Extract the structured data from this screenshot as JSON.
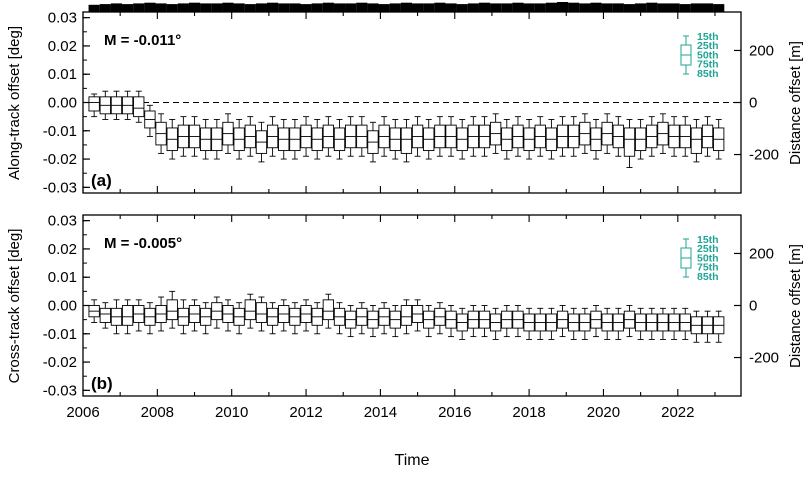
{
  "chart_data": [
    {
      "type": "box",
      "panel_label": "(a)",
      "annotation": "M = -0.011°",
      "ylabel": "Along-track offset [deg]",
      "y2label": "Distance offset [m]",
      "ylim": [
        -0.032,
        0.032
      ],
      "yticks": [
        "0.03",
        "0.02",
        "0.01",
        "0.00",
        "-0.01",
        "-0.02",
        "-0.03"
      ],
      "y2ticks": [
        "200",
        "0",
        "-200"
      ],
      "zero_line": "dashed",
      "legend": {
        "labels": [
          "15th",
          "25th",
          "50th",
          "75th",
          "85th"
        ],
        "color": "#1fa596",
        "placement": "top-right"
      },
      "top_bars": "observation count per period (black bars along top edge)",
      "xlim": [
        2006,
        2023.7
      ],
      "x": [
        2006.3,
        2006.6,
        2006.9,
        2007.2,
        2007.5,
        2007.8,
        2008.1,
        2008.4,
        2008.7,
        2009.0,
        2009.3,
        2009.6,
        2009.9,
        2010.2,
        2010.5,
        2010.8,
        2011.1,
        2011.4,
        2011.7,
        2012.0,
        2012.3,
        2012.6,
        2012.9,
        2013.2,
        2013.5,
        2013.8,
        2014.1,
        2014.4,
        2014.7,
        2015.0,
        2015.3,
        2015.6,
        2015.9,
        2016.2,
        2016.5,
        2016.8,
        2017.1,
        2017.4,
        2017.7,
        2018.0,
        2018.3,
        2018.6,
        2018.9,
        2019.2,
        2019.5,
        2019.8,
        2020.1,
        2020.4,
        2020.7,
        2021.0,
        2021.3,
        2021.6,
        2021.9,
        2022.2,
        2022.5,
        2022.8,
        2023.1
      ],
      "median": [
        0.0,
        -0.001,
        -0.001,
        -0.001,
        -0.002,
        -0.006,
        -0.011,
        -0.013,
        -0.012,
        -0.012,
        -0.013,
        -0.013,
        -0.011,
        -0.013,
        -0.012,
        -0.014,
        -0.012,
        -0.013,
        -0.013,
        -0.012,
        -0.013,
        -0.012,
        -0.013,
        -0.012,
        -0.012,
        -0.014,
        -0.012,
        -0.013,
        -0.013,
        -0.012,
        -0.013,
        -0.012,
        -0.012,
        -0.013,
        -0.012,
        -0.012,
        -0.011,
        -0.013,
        -0.012,
        -0.013,
        -0.012,
        -0.013,
        -0.012,
        -0.012,
        -0.011,
        -0.013,
        -0.011,
        -0.012,
        -0.013,
        -0.013,
        -0.012,
        -0.011,
        -0.012,
        -0.012,
        -0.013,
        -0.012,
        -0.013
      ],
      "q25": [
        -0.003,
        -0.004,
        -0.004,
        -0.004,
        -0.005,
        -0.009,
        -0.015,
        -0.017,
        -0.016,
        -0.016,
        -0.017,
        -0.017,
        -0.015,
        -0.017,
        -0.016,
        -0.018,
        -0.016,
        -0.017,
        -0.017,
        -0.016,
        -0.017,
        -0.016,
        -0.017,
        -0.016,
        -0.016,
        -0.018,
        -0.016,
        -0.017,
        -0.018,
        -0.016,
        -0.017,
        -0.016,
        -0.016,
        -0.017,
        -0.016,
        -0.016,
        -0.015,
        -0.017,
        -0.016,
        -0.017,
        -0.016,
        -0.017,
        -0.016,
        -0.016,
        -0.015,
        -0.017,
        -0.015,
        -0.016,
        -0.019,
        -0.017,
        -0.016,
        -0.015,
        -0.016,
        -0.016,
        -0.018,
        -0.016,
        -0.017
      ],
      "q75": [
        0.002,
        0.002,
        0.002,
        0.002,
        0.002,
        -0.003,
        -0.007,
        -0.009,
        -0.008,
        -0.008,
        -0.009,
        -0.009,
        -0.007,
        -0.009,
        -0.008,
        -0.01,
        -0.008,
        -0.009,
        -0.009,
        -0.008,
        -0.009,
        -0.008,
        -0.009,
        -0.008,
        -0.008,
        -0.01,
        -0.008,
        -0.009,
        -0.009,
        -0.008,
        -0.009,
        -0.008,
        -0.008,
        -0.009,
        -0.008,
        -0.008,
        -0.007,
        -0.009,
        -0.008,
        -0.009,
        -0.008,
        -0.009,
        -0.008,
        -0.008,
        -0.007,
        -0.009,
        -0.007,
        -0.008,
        -0.009,
        -0.009,
        -0.008,
        -0.007,
        -0.008,
        -0.008,
        -0.009,
        -0.008,
        -0.009
      ],
      "p15": [
        -0.005,
        -0.006,
        -0.006,
        -0.006,
        -0.007,
        -0.012,
        -0.018,
        -0.02,
        -0.019,
        -0.019,
        -0.02,
        -0.02,
        -0.018,
        -0.02,
        -0.019,
        -0.021,
        -0.019,
        -0.02,
        -0.02,
        -0.019,
        -0.02,
        -0.019,
        -0.02,
        -0.019,
        -0.019,
        -0.021,
        -0.019,
        -0.02,
        -0.021,
        -0.019,
        -0.02,
        -0.019,
        -0.019,
        -0.02,
        -0.019,
        -0.019,
        -0.018,
        -0.02,
        -0.019,
        -0.02,
        -0.019,
        -0.02,
        -0.019,
        -0.019,
        -0.018,
        -0.02,
        -0.018,
        -0.019,
        -0.023,
        -0.02,
        -0.019,
        -0.018,
        -0.019,
        -0.019,
        -0.021,
        -0.019,
        -0.02
      ],
      "p85": [
        0.003,
        0.004,
        0.004,
        0.004,
        0.004,
        -0.001,
        -0.004,
        -0.006,
        -0.005,
        -0.005,
        -0.006,
        -0.006,
        -0.004,
        -0.006,
        -0.005,
        -0.007,
        -0.005,
        -0.006,
        -0.006,
        -0.005,
        -0.006,
        -0.005,
        -0.006,
        -0.005,
        -0.005,
        -0.007,
        -0.005,
        -0.006,
        -0.006,
        -0.005,
        -0.006,
        -0.005,
        -0.005,
        -0.006,
        -0.005,
        -0.005,
        -0.004,
        -0.006,
        -0.005,
        -0.006,
        -0.005,
        -0.006,
        -0.005,
        -0.005,
        -0.004,
        -0.006,
        -0.004,
        -0.005,
        -0.006,
        -0.006,
        -0.005,
        -0.004,
        -0.005,
        -0.005,
        -0.006,
        -0.005,
        -0.006
      ],
      "counts": [
        0.6,
        0.7,
        0.8,
        0.7,
        0.8,
        0.9,
        0.8,
        0.7,
        0.8,
        0.9,
        0.8,
        0.8,
        0.9,
        0.8,
        0.7,
        0.8,
        0.9,
        0.8,
        0.8,
        0.7,
        0.8,
        0.9,
        0.8,
        0.8,
        0.9,
        0.8,
        0.7,
        0.8,
        0.9,
        0.8,
        0.8,
        0.9,
        0.8,
        0.7,
        0.8,
        0.9,
        0.8,
        0.8,
        0.9,
        0.8,
        0.8,
        0.9,
        1.0,
        0.9,
        0.8,
        0.9,
        0.8,
        0.8,
        0.7,
        0.8,
        0.9,
        0.8,
        0.8,
        0.7,
        0.8,
        0.8,
        0.7
      ]
    },
    {
      "type": "box",
      "panel_label": "(b)",
      "annotation": "M = -0.005°",
      "ylabel": "Cross-track offset [deg]",
      "y2label": "Distance offset [m]",
      "xlabel": "Time",
      "ylim": [
        -0.032,
        0.032
      ],
      "yticks": [
        "0.03",
        "0.02",
        "0.01",
        "0.00",
        "-0.01",
        "-0.02",
        "-0.03"
      ],
      "y2ticks": [
        "200",
        "0",
        "-200"
      ],
      "xticks": [
        "2006",
        "2008",
        "2010",
        "2012",
        "2014",
        "2016",
        "2018",
        "2020",
        "2022"
      ],
      "legend": {
        "labels": [
          "15th",
          "25th",
          "50th",
          "75th",
          "85th"
        ],
        "color": "#1fa596",
        "placement": "top-right"
      },
      "xlim": [
        2006,
        2023.7
      ],
      "x": [
        2006.3,
        2006.6,
        2006.9,
        2007.2,
        2007.5,
        2007.8,
        2008.1,
        2008.4,
        2008.7,
        2009.0,
        2009.3,
        2009.6,
        2009.9,
        2010.2,
        2010.5,
        2010.8,
        2011.1,
        2011.4,
        2011.7,
        2012.0,
        2012.3,
        2012.6,
        2012.9,
        2013.2,
        2013.5,
        2013.8,
        2014.1,
        2014.4,
        2014.7,
        2015.0,
        2015.3,
        2015.6,
        2015.9,
        2016.2,
        2016.5,
        2016.8,
        2017.1,
        2017.4,
        2017.7,
        2018.0,
        2018.3,
        2018.6,
        2018.9,
        2019.2,
        2019.5,
        2019.8,
        2020.1,
        2020.4,
        2020.7,
        2021.0,
        2021.3,
        2021.6,
        2021.9,
        2022.2,
        2022.5,
        2022.8,
        2023.1
      ],
      "median": [
        -0.002,
        -0.003,
        -0.004,
        -0.004,
        -0.003,
        -0.004,
        -0.003,
        -0.002,
        -0.004,
        -0.003,
        -0.004,
        -0.002,
        -0.003,
        -0.004,
        -0.002,
        -0.003,
        -0.004,
        -0.003,
        -0.004,
        -0.003,
        -0.004,
        -0.002,
        -0.004,
        -0.005,
        -0.004,
        -0.005,
        -0.004,
        -0.005,
        -0.004,
        -0.003,
        -0.005,
        -0.004,
        -0.005,
        -0.006,
        -0.005,
        -0.005,
        -0.006,
        -0.005,
        -0.005,
        -0.006,
        -0.006,
        -0.006,
        -0.005,
        -0.006,
        -0.006,
        -0.005,
        -0.006,
        -0.006,
        -0.005,
        -0.006,
        -0.006,
        -0.006,
        -0.006,
        -0.006,
        -0.007,
        -0.007,
        -0.007
      ],
      "q25": [
        -0.004,
        -0.006,
        -0.007,
        -0.007,
        -0.006,
        -0.007,
        -0.006,
        -0.005,
        -0.007,
        -0.006,
        -0.007,
        -0.005,
        -0.006,
        -0.007,
        -0.005,
        -0.006,
        -0.007,
        -0.006,
        -0.007,
        -0.006,
        -0.007,
        -0.005,
        -0.007,
        -0.008,
        -0.007,
        -0.008,
        -0.007,
        -0.008,
        -0.007,
        -0.006,
        -0.008,
        -0.007,
        -0.008,
        -0.009,
        -0.008,
        -0.008,
        -0.009,
        -0.008,
        -0.008,
        -0.009,
        -0.009,
        -0.009,
        -0.008,
        -0.009,
        -0.009,
        -0.008,
        -0.009,
        -0.009,
        -0.008,
        -0.009,
        -0.009,
        -0.009,
        -0.009,
        -0.009,
        -0.01,
        -0.01,
        -0.01
      ],
      "q75": [
        0.0,
        -0.001,
        -0.001,
        0.0,
        0.0,
        -0.001,
        0.0,
        0.002,
        -0.001,
        0.0,
        -0.001,
        0.001,
        0.0,
        -0.001,
        0.002,
        0.001,
        -0.001,
        0.0,
        -0.001,
        0.0,
        -0.001,
        0.002,
        -0.001,
        -0.002,
        -0.001,
        -0.002,
        -0.001,
        -0.002,
        0.0,
        0.0,
        -0.002,
        -0.001,
        -0.002,
        -0.003,
        -0.002,
        -0.002,
        -0.003,
        -0.002,
        -0.002,
        -0.003,
        -0.003,
        -0.003,
        -0.002,
        -0.003,
        -0.003,
        -0.002,
        -0.003,
        -0.003,
        -0.002,
        -0.003,
        -0.003,
        -0.003,
        -0.003,
        -0.003,
        -0.004,
        -0.004,
        -0.004
      ],
      "p15": [
        -0.006,
        -0.008,
        -0.01,
        -0.01,
        -0.009,
        -0.01,
        -0.009,
        -0.008,
        -0.01,
        -0.009,
        -0.01,
        -0.008,
        -0.009,
        -0.01,
        -0.008,
        -0.009,
        -0.01,
        -0.009,
        -0.01,
        -0.009,
        -0.01,
        -0.008,
        -0.01,
        -0.011,
        -0.01,
        -0.011,
        -0.01,
        -0.011,
        -0.01,
        -0.009,
        -0.011,
        -0.01,
        -0.011,
        -0.012,
        -0.011,
        -0.011,
        -0.012,
        -0.011,
        -0.011,
        -0.012,
        -0.012,
        -0.012,
        -0.011,
        -0.012,
        -0.012,
        -0.011,
        -0.012,
        -0.012,
        -0.011,
        -0.012,
        -0.012,
        -0.012,
        -0.012,
        -0.012,
        -0.013,
        -0.013,
        -0.013
      ],
      "p85": [
        0.002,
        0.001,
        0.002,
        0.002,
        0.002,
        0.001,
        0.003,
        0.005,
        0.002,
        0.002,
        0.001,
        0.003,
        0.002,
        0.001,
        0.004,
        0.003,
        0.001,
        0.002,
        0.001,
        0.002,
        0.001,
        0.004,
        0.001,
        0.0,
        0.001,
        0.0,
        0.001,
        0.0,
        0.002,
        0.002,
        0.0,
        0.001,
        0.0,
        -0.001,
        0.0,
        0.0,
        -0.001,
        0.0,
        0.0,
        -0.001,
        -0.001,
        -0.001,
        0.0,
        -0.001,
        -0.001,
        0.0,
        -0.001,
        -0.001,
        0.0,
        -0.001,
        -0.001,
        -0.001,
        -0.001,
        -0.001,
        -0.002,
        -0.002,
        -0.002
      ]
    }
  ]
}
